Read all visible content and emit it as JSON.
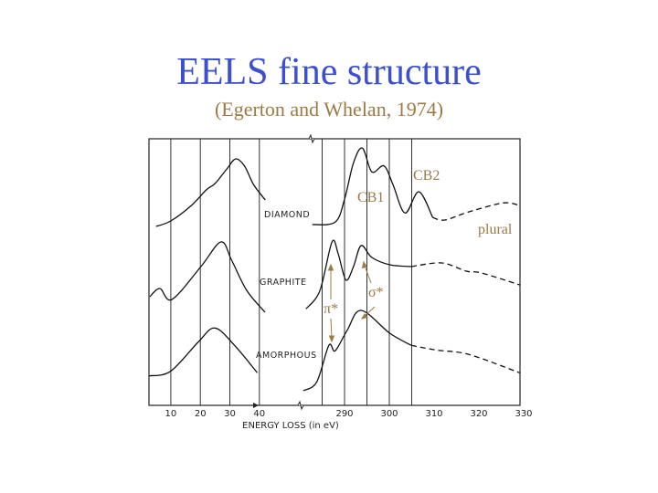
{
  "slide": {
    "title": "EELS fine structure",
    "subtitle": "(Egerton and Whelan, 1974)",
    "title_color": "#3b4fd0",
    "annotation_color": "#9c7a45"
  },
  "chart_data": {
    "type": "line",
    "xlabel": "ENERGY LOSS (in eV)",
    "ylabel": "",
    "x_axis_broken": true,
    "xlim_low": [
      0,
      45
    ],
    "xlim_high": [
      280,
      330
    ],
    "x_ticks_low": [
      "10",
      "20",
      "30",
      "40"
    ],
    "x_ticks_high": [
      "290",
      "300",
      "310",
      "320",
      "330"
    ],
    "gridlines_eV": [
      10,
      20,
      30,
      40,
      285,
      290,
      295,
      300,
      305
    ],
    "y_units": "arbitrary (relative intensity, traces offset vertically)",
    "series": [
      {
        "name": "DIAMOND",
        "low_loss": [
          [
            5,
            0
          ],
          [
            10,
            6
          ],
          [
            17,
            23
          ],
          [
            22,
            40
          ],
          [
            25,
            47
          ],
          [
            29,
            63
          ],
          [
            32,
            74
          ],
          [
            35,
            66
          ],
          [
            38,
            46
          ],
          [
            42,
            29
          ]
        ],
        "k_edge": [
          [
            282.8,
            2
          ],
          [
            287.9,
            4.7
          ],
          [
            290,
            29.7
          ],
          [
            292,
            69.7
          ],
          [
            294,
            85.7
          ],
          [
            296.1,
            59.7
          ],
          [
            298.8,
            66.3
          ],
          [
            300.8,
            46
          ],
          [
            303.5,
            14.7
          ],
          [
            306.6,
            38
          ],
          [
            309.7,
            9.7
          ],
          [
            312.4,
            7
          ],
          [
            317.8,
            16
          ],
          [
            325.4,
            25.7
          ],
          [
            329.1,
            23
          ]
        ],
        "dashed_from_eV": 310
      },
      {
        "name": "GRAPHITE",
        "low_loss": [
          [
            2.9,
            17
          ],
          [
            6.3,
            26
          ],
          [
            10.4,
            14
          ],
          [
            20.2,
            50
          ],
          [
            27,
            77
          ],
          [
            30.6,
            57
          ],
          [
            35.7,
            24
          ],
          [
            41.9,
            0
          ]
        ],
        "k_edge": [
          [
            281.4,
            3.7
          ],
          [
            284.5,
            23.7
          ],
          [
            287.2,
            77
          ],
          [
            288.6,
            63.7
          ],
          [
            290.3,
            35.3
          ],
          [
            292,
            50
          ],
          [
            293.7,
            73
          ],
          [
            296.1,
            60
          ],
          [
            300.1,
            52
          ],
          [
            304.9,
            50
          ],
          [
            311.7,
            54
          ],
          [
            317.2,
            45
          ],
          [
            320.6,
            43
          ],
          [
            329.1,
            30
          ]
        ],
        "dashed_from_eV": 309
      },
      {
        "name": "AMORPHOUS",
        "low_loss": [
          [
            2.7,
            16.3
          ],
          [
            9.9,
            21.3
          ],
          [
            19.2,
            53
          ],
          [
            24.9,
            68.7
          ],
          [
            31.6,
            49.7
          ],
          [
            39.3,
            19.7
          ]
        ],
        "k_edge": [
          [
            280.8,
            0
          ],
          [
            283.8,
            9.7
          ],
          [
            286.5,
            49.7
          ],
          [
            287.9,
            43.7
          ],
          [
            290.6,
            66.3
          ],
          [
            293.7,
            88
          ],
          [
            300.1,
            63
          ],
          [
            304.9,
            49.7
          ],
          [
            310.3,
            44.7
          ],
          [
            317.8,
            39.7
          ],
          [
            329.1,
            19.7
          ]
        ],
        "dashed_from_eV": 310
      }
    ],
    "annotations": [
      "CB1",
      "CB2",
      "plural",
      "π*",
      "σ*"
    ]
  }
}
